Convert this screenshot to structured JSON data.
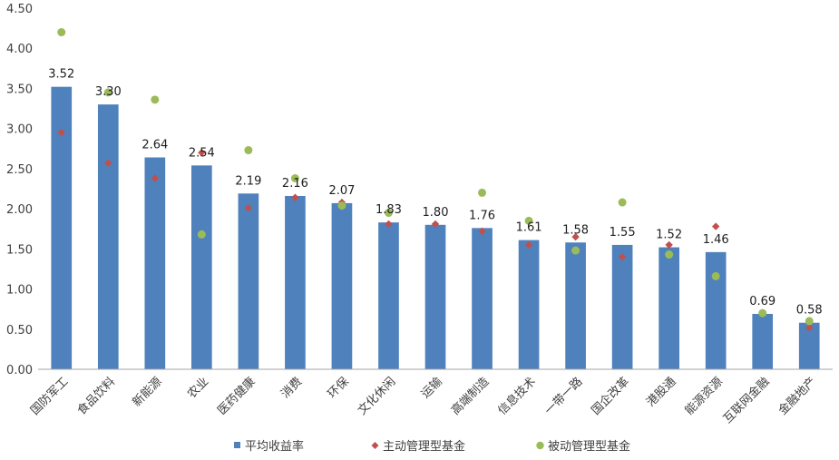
{
  "chart_data": {
    "type": "bar",
    "categories": [
      "国防军工",
      "食品饮料",
      "新能源",
      "农业",
      "医药健康",
      "消费",
      "环保",
      "文化休闲",
      "运输",
      "高端制造",
      "信息技术",
      "一带一路",
      "国企改革",
      "港股通",
      "能源资源",
      "互联网金融",
      "金融地产"
    ],
    "series": [
      {
        "name": "平均收益率",
        "type": "bar",
        "color": "#4F81BD",
        "values": [
          3.52,
          3.3,
          2.64,
          2.54,
          2.19,
          2.16,
          2.07,
          1.83,
          1.8,
          1.76,
          1.61,
          1.58,
          1.55,
          1.52,
          1.46,
          0.69,
          0.58
        ],
        "labels": [
          "3.52",
          "3.30",
          "2.64",
          "2.54",
          "2.19",
          "2.16",
          "2.07",
          "1.83",
          "1.80",
          "1.76",
          "1.61",
          "1.58",
          "1.55",
          "1.52",
          "1.46",
          "0.69",
          "0.58"
        ]
      },
      {
        "name": "主动管理型基金",
        "type": "marker-diamond",
        "color": "#C0504D",
        "values": [
          2.95,
          2.57,
          2.38,
          2.7,
          2.01,
          2.14,
          2.08,
          1.81,
          1.81,
          1.72,
          1.55,
          1.65,
          1.4,
          1.55,
          1.78,
          null,
          0.52
        ]
      },
      {
        "name": "被动管理型基金",
        "type": "marker-circle",
        "color": "#9BBB59",
        "values": [
          4.2,
          3.45,
          3.36,
          1.68,
          2.73,
          2.38,
          2.04,
          1.95,
          null,
          2.2,
          1.85,
          1.48,
          2.08,
          1.43,
          1.16,
          0.7,
          0.6
        ]
      }
    ],
    "ylim": [
      0,
      4.5
    ],
    "yticks": [
      "0.00",
      "0.50",
      "1.00",
      "1.50",
      "2.00",
      "2.50",
      "3.00",
      "3.50",
      "4.00",
      "4.50"
    ],
    "grid": false,
    "legend_position": "bottom"
  }
}
